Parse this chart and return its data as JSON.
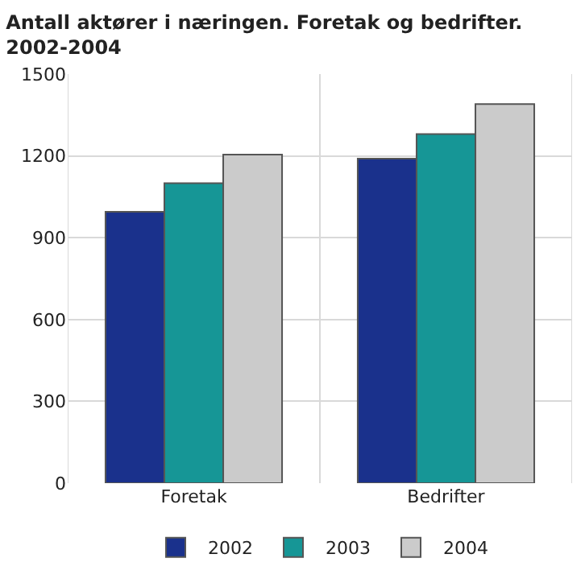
{
  "chart_data": {
    "type": "bar",
    "title": "Antall aktører i næringen. Foretak og bedrifter.\n2002-2004",
    "categories": [
      "Foretak",
      "Bedrifter"
    ],
    "series": [
      {
        "name": "2002",
        "color": "#1a318c",
        "values": [
          995,
          1190
        ]
      },
      {
        "name": "2003",
        "color": "#169696",
        "values": [
          1100,
          1280
        ]
      },
      {
        "name": "2004",
        "color": "#cbcbcb",
        "values": [
          1205,
          1390
        ]
      }
    ],
    "ylim": [
      0,
      1500
    ],
    "yticks": [
      0,
      300,
      600,
      900,
      1200,
      1500
    ],
    "grid": true,
    "legend": "bottom"
  }
}
